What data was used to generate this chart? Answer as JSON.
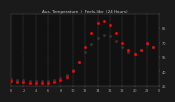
{
  "title": "Aus. Temperature  /  Feels-like  (24 Hours)",
  "background_color": "#1a1a1a",
  "plot_bg_color": "#111111",
  "grid_color": "#555555",
  "temp_color": "#000000",
  "heat_color": "#ff0000",
  "orange_color": "#ff8800",
  "ylim": [
    25,
    100
  ],
  "ytick_values": [
    25,
    40,
    55,
    70,
    85,
    100
  ],
  "ytick_labels": [
    "25",
    "40",
    "55",
    "70",
    "85",
    ""
  ],
  "temp_data": [
    [
      0,
      32
    ],
    [
      1,
      31
    ],
    [
      2,
      31
    ],
    [
      3,
      30
    ],
    [
      4,
      30
    ],
    [
      5,
      30
    ],
    [
      6,
      30
    ],
    [
      7,
      31
    ],
    [
      8,
      33
    ],
    [
      9,
      36
    ],
    [
      10,
      42
    ],
    [
      11,
      50
    ],
    [
      12,
      60
    ],
    [
      13,
      68
    ],
    [
      14,
      75
    ],
    [
      15,
      78
    ],
    [
      16,
      77
    ],
    [
      17,
      72
    ],
    [
      18,
      65
    ],
    [
      19,
      60
    ],
    [
      20,
      58
    ],
    [
      21,
      62
    ],
    [
      22,
      68
    ],
    [
      23,
      65
    ]
  ],
  "heat_data": [
    [
      0,
      30
    ],
    [
      1,
      29
    ],
    [
      2,
      29
    ],
    [
      3,
      28
    ],
    [
      4,
      28
    ],
    [
      5,
      28
    ],
    [
      6,
      28
    ],
    [
      7,
      29
    ],
    [
      8,
      31
    ],
    [
      9,
      34
    ],
    [
      10,
      40
    ],
    [
      11,
      50
    ],
    [
      12,
      65
    ],
    [
      13,
      80
    ],
    [
      14,
      90
    ],
    [
      15,
      92
    ],
    [
      16,
      88
    ],
    [
      17,
      80
    ],
    [
      18,
      70
    ],
    [
      19,
      62
    ],
    [
      20,
      58
    ],
    [
      21,
      62
    ],
    [
      22,
      70
    ],
    [
      23,
      65
    ]
  ],
  "xtick_positions": [
    0,
    2,
    4,
    6,
    8,
    10,
    12,
    14,
    16,
    18,
    20,
    22,
    24
  ],
  "xtick_labels": [
    "0",
    "2",
    "4",
    "6",
    "8",
    "10",
    "12",
    "14",
    "16",
    "18",
    "20",
    "22",
    "0"
  ],
  "vgrid_positions": [
    2,
    4,
    6,
    8,
    10,
    12,
    14,
    16,
    18,
    20,
    22
  ]
}
